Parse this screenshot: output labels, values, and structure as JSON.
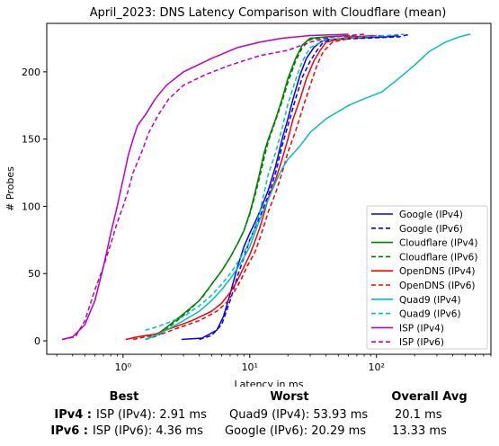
{
  "chart_data": {
    "type": "line",
    "title": "April_2023: DNS Latency Comparison with Cloudflare (mean)",
    "xlabel": "Latency in ms",
    "ylabel": "# Probes",
    "xscale": "log",
    "xlim": [
      0.25,
      800
    ],
    "ylim": [
      -10,
      236
    ],
    "xticks": [
      1,
      10,
      100
    ],
    "xtick_labels": [
      "10⁰",
      "10¹",
      "10²"
    ],
    "yticks": [
      0,
      50,
      100,
      150,
      200
    ],
    "legend_position": "lower-right",
    "series": [
      {
        "name": "Google (IPv4)",
        "color": "#0000ff",
        "dash": false,
        "points": [
          [
            2.9,
            1
          ],
          [
            4.2,
            2
          ],
          [
            5.5,
            8
          ],
          [
            6.2,
            18
          ],
          [
            7,
            35
          ],
          [
            8,
            55
          ],
          [
            9,
            70
          ],
          [
            10,
            80
          ],
          [
            11,
            88
          ],
          [
            12,
            96
          ],
          [
            14,
            112
          ],
          [
            16,
            130
          ],
          [
            18,
            150
          ],
          [
            20,
            165
          ],
          [
            22,
            180
          ],
          [
            25,
            198
          ],
          [
            28,
            210
          ],
          [
            32,
            218
          ],
          [
            36,
            222
          ],
          [
            40,
            224
          ],
          [
            60,
            225
          ],
          [
            120,
            226
          ],
          [
            150,
            227
          ]
        ]
      },
      {
        "name": "Google (IPv6)",
        "color": "#0000ff",
        "dash": true,
        "points": [
          [
            4,
            1
          ],
          [
            5,
            4
          ],
          [
            6,
            12
          ],
          [
            7,
            30
          ],
          [
            8,
            48
          ],
          [
            9,
            62
          ],
          [
            10,
            75
          ],
          [
            11,
            84
          ],
          [
            12,
            92
          ],
          [
            14,
            108
          ],
          [
            16,
            125
          ],
          [
            18,
            145
          ],
          [
            20,
            160
          ],
          [
            23,
            180
          ],
          [
            26,
            196
          ],
          [
            30,
            208
          ],
          [
            34,
            216
          ],
          [
            38,
            222
          ],
          [
            45,
            224
          ],
          [
            80,
            225
          ],
          [
            150,
            226
          ],
          [
            185,
            228
          ]
        ]
      },
      {
        "name": "Cloudflare (IPv4)",
        "color": "#008000",
        "dash": false,
        "points": [
          [
            1.5,
            1
          ],
          [
            1.8,
            4
          ],
          [
            2.2,
            10
          ],
          [
            3,
            20
          ],
          [
            4,
            30
          ],
          [
            5,
            42
          ],
          [
            6,
            52
          ],
          [
            7,
            62
          ],
          [
            8,
            72
          ],
          [
            9,
            82
          ],
          [
            10,
            95
          ],
          [
            11,
            110
          ],
          [
            12,
            125
          ],
          [
            13,
            140
          ],
          [
            14,
            150
          ],
          [
            16,
            165
          ],
          [
            18,
            180
          ],
          [
            20,
            195
          ],
          [
            23,
            210
          ],
          [
            26,
            220
          ],
          [
            30,
            225
          ],
          [
            40,
            226
          ],
          [
            60,
            227
          ]
        ]
      },
      {
        "name": "Cloudflare (IPv6)",
        "color": "#008000",
        "dash": true,
        "points": [
          [
            1.5,
            1
          ],
          [
            1.9,
            4
          ],
          [
            2.3,
            10
          ],
          [
            3.1,
            20
          ],
          [
            4.2,
            32
          ],
          [
            5,
            42
          ],
          [
            6,
            52
          ],
          [
            7,
            62
          ],
          [
            8,
            72
          ],
          [
            9,
            82
          ],
          [
            10,
            94
          ],
          [
            11,
            108
          ],
          [
            12,
            122
          ],
          [
            13,
            136
          ],
          [
            14,
            148
          ],
          [
            16,
            164
          ],
          [
            18,
            178
          ],
          [
            20,
            192
          ],
          [
            23,
            208
          ],
          [
            26,
            218
          ],
          [
            30,
            224
          ],
          [
            45,
            226
          ],
          [
            70,
            227
          ]
        ]
      },
      {
        "name": "OpenDNS (IPv4)",
        "color": "#ff0000",
        "dash": false,
        "points": [
          [
            1.05,
            1
          ],
          [
            1.3,
            3
          ],
          [
            1.8,
            5
          ],
          [
            2.5,
            10
          ],
          [
            3.5,
            15
          ],
          [
            5,
            22
          ],
          [
            6,
            28
          ],
          [
            7,
            36
          ],
          [
            8,
            45
          ],
          [
            9,
            55
          ],
          [
            10,
            64
          ],
          [
            11,
            74
          ],
          [
            12,
            84
          ],
          [
            13,
            95
          ],
          [
            14,
            106
          ],
          [
            16,
            120
          ],
          [
            18,
            135
          ],
          [
            20,
            150
          ],
          [
            22,
            165
          ],
          [
            25,
            180
          ],
          [
            28,
            195
          ],
          [
            32,
            208
          ],
          [
            36,
            216
          ],
          [
            40,
            222
          ],
          [
            60,
            226
          ],
          [
            100,
            227
          ]
        ]
      },
      {
        "name": "OpenDNS (IPv6)",
        "color": "#ff0000",
        "dash": true,
        "points": [
          [
            1.2,
            1
          ],
          [
            1.5,
            3
          ],
          [
            2,
            5
          ],
          [
            2.8,
            10
          ],
          [
            4,
            15
          ],
          [
            5.5,
            22
          ],
          [
            6.5,
            28
          ],
          [
            7.5,
            36
          ],
          [
            8.5,
            45
          ],
          [
            9.5,
            55
          ],
          [
            11,
            66
          ],
          [
            12,
            76
          ],
          [
            13,
            86
          ],
          [
            14,
            96
          ],
          [
            16,
            110
          ],
          [
            18,
            125
          ],
          [
            20,
            140
          ],
          [
            23,
            156
          ],
          [
            26,
            172
          ],
          [
            30,
            190
          ],
          [
            34,
            205
          ],
          [
            38,
            215
          ],
          [
            45,
            222
          ],
          [
            70,
            226
          ],
          [
            110,
            227
          ]
        ]
      },
      {
        "name": "Quad9 (IPv4)",
        "color": "#00bfbf",
        "dash": false,
        "points": [
          [
            1.5,
            1
          ],
          [
            1.8,
            4
          ],
          [
            2.2,
            8
          ],
          [
            3,
            15
          ],
          [
            4,
            22
          ],
          [
            5,
            30
          ],
          [
            6,
            38
          ],
          [
            7,
            46
          ],
          [
            8,
            54
          ],
          [
            9,
            62
          ],
          [
            10,
            70
          ],
          [
            12,
            90
          ],
          [
            14,
            105
          ],
          [
            16,
            118
          ],
          [
            18,
            128
          ],
          [
            20,
            135
          ],
          [
            25,
            145
          ],
          [
            30,
            155
          ],
          [
            40,
            165
          ],
          [
            60,
            175
          ],
          [
            80,
            180
          ],
          [
            110,
            185
          ],
          [
            150,
            195
          ],
          [
            200,
            205
          ],
          [
            260,
            215
          ],
          [
            350,
            222
          ],
          [
            450,
            226
          ],
          [
            550,
            228
          ]
        ]
      },
      {
        "name": "Quad9 (IPv6)",
        "color": "#00bfbf",
        "dash": true,
        "points": [
          [
            1.5,
            8
          ],
          [
            1.8,
            10
          ],
          [
            2.2,
            13
          ],
          [
            3,
            18
          ],
          [
            4,
            26
          ],
          [
            5,
            34
          ],
          [
            6,
            42
          ],
          [
            7,
            50
          ],
          [
            8,
            58
          ],
          [
            9,
            66
          ],
          [
            10,
            74
          ],
          [
            11,
            84
          ],
          [
            12,
            96
          ],
          [
            13,
            110
          ],
          [
            14,
            124
          ],
          [
            16,
            140
          ],
          [
            18,
            158
          ],
          [
            20,
            176
          ],
          [
            23,
            194
          ],
          [
            26,
            208
          ],
          [
            30,
            218
          ],
          [
            40,
            224
          ],
          [
            80,
            226
          ],
          [
            120,
            227
          ],
          [
            165,
            228
          ]
        ]
      },
      {
        "name": "ISP (IPv4)",
        "color": "#bf00bf",
        "dash": false,
        "points": [
          [
            0.33,
            1
          ],
          [
            0.4,
            3
          ],
          [
            0.5,
            12
          ],
          [
            0.6,
            30
          ],
          [
            0.7,
            55
          ],
          [
            0.8,
            80
          ],
          [
            0.9,
            100
          ],
          [
            1.0,
            120
          ],
          [
            1.1,
            138
          ],
          [
            1.2,
            150
          ],
          [
            1.3,
            160
          ],
          [
            1.5,
            168
          ],
          [
            1.8,
            180
          ],
          [
            2.2,
            190
          ],
          [
            3,
            200
          ],
          [
            5,
            210
          ],
          [
            8,
            218
          ],
          [
            12,
            222
          ],
          [
            18,
            225
          ],
          [
            30,
            227
          ],
          [
            60,
            228
          ]
        ]
      },
      {
        "name": "ISP (IPv6)",
        "color": "#bf00bf",
        "dash": true,
        "points": [
          [
            0.33,
            1
          ],
          [
            0.42,
            3
          ],
          [
            0.5,
            15
          ],
          [
            0.6,
            38
          ],
          [
            0.7,
            55
          ],
          [
            0.8,
            72
          ],
          [
            0.9,
            88
          ],
          [
            1.0,
            100
          ],
          [
            1.1,
            112
          ],
          [
            1.2,
            125
          ],
          [
            1.4,
            140
          ],
          [
            1.6,
            155
          ],
          [
            1.9,
            168
          ],
          [
            2.3,
            180
          ],
          [
            3,
            190
          ],
          [
            4.5,
            198
          ],
          [
            7,
            205
          ],
          [
            12,
            212
          ],
          [
            20,
            216
          ],
          [
            30,
            222
          ],
          [
            45,
            226
          ],
          [
            80,
            228
          ]
        ]
      }
    ]
  },
  "summary": {
    "headers": {
      "best": "Best",
      "worst": "Worst",
      "avg": "Overall Avg"
    },
    "rows": [
      {
        "label": "IPv4 :",
        "best": "ISP (IPv4): 2.91 ms",
        "worst": "Quad9 (IPv4): 53.93 ms",
        "avg": "20.1 ms"
      },
      {
        "label": "IPv6 :",
        "best": "ISP (IPv6): 4.36 ms",
        "worst": "Google (IPv6): 20.29 ms",
        "avg": "13.33 ms"
      }
    ]
  }
}
